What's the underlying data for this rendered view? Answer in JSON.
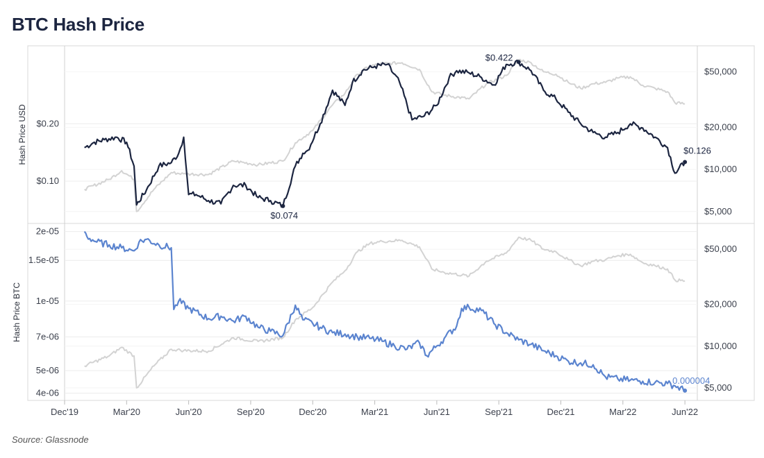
{
  "title": "BTC Hash Price",
  "source": "Source: Glassnode",
  "colors": {
    "usd_line": "#1c2540",
    "btc_line": "#5b84cf",
    "btc_price": "#d3d3d3",
    "grid": "#ececec",
    "frame": "#cfcfcf"
  },
  "chart_data": [
    {
      "type": "line",
      "title": "Hash Price USD",
      "ylabel": "Hash Price USD",
      "y_scale": "log",
      "ylim": [
        0.062,
        0.48
      ],
      "y_ticks": [
        {
          "value": 0.2,
          "label": "$0.20"
        },
        {
          "value": 0.1,
          "label": "$0.10"
        }
      ],
      "y2_scale": "log",
      "y2lim": [
        4300,
        70000
      ],
      "y2_ticks": [
        {
          "value": 50000,
          "label": "$50,000"
        },
        {
          "value": 20000,
          "label": "$20,000"
        },
        {
          "value": 10000,
          "label": "$10,000"
        },
        {
          "value": 5000,
          "label": "$5,000"
        }
      ],
      "series": [
        {
          "name": "Hash Price USD",
          "axis": "left",
          "x": [
            2020.0,
            2020.04,
            2020.08,
            2020.13,
            2020.17,
            2020.2,
            2020.21,
            2020.25,
            2020.3,
            2020.35,
            2020.38,
            2020.4,
            2020.42,
            2020.45,
            2020.5,
            2020.55,
            2020.6,
            2020.65,
            2020.7,
            2020.75,
            2020.8,
            2020.85,
            2020.88,
            2020.9,
            2020.95,
            2021.0,
            2021.05,
            2021.08,
            2021.12,
            2021.17,
            2021.22,
            2021.27,
            2021.32,
            2021.37,
            2021.42,
            2021.47,
            2021.5,
            2021.55,
            2021.6,
            2021.65,
            2021.7,
            2021.75,
            2021.8,
            2021.85,
            2021.9,
            2021.95,
            2022.0,
            2022.05,
            2022.1,
            2022.15,
            2022.2,
            2022.25,
            2022.3,
            2022.35,
            2022.38,
            2022.42
          ],
          "values": [
            0.15,
            0.16,
            0.165,
            0.17,
            0.16,
            0.12,
            0.075,
            0.09,
            0.12,
            0.125,
            0.14,
            0.17,
            0.085,
            0.085,
            0.079,
            0.076,
            0.095,
            0.095,
            0.082,
            0.079,
            0.074,
            0.12,
            0.14,
            0.145,
            0.2,
            0.3,
            0.25,
            0.33,
            0.38,
            0.4,
            0.41,
            0.33,
            0.21,
            0.22,
            0.25,
            0.35,
            0.38,
            0.37,
            0.35,
            0.32,
            0.41,
            0.422,
            0.38,
            0.3,
            0.27,
            0.23,
            0.2,
            0.18,
            0.17,
            0.18,
            0.2,
            0.19,
            0.17,
            0.15,
            0.11,
            0.126
          ]
        },
        {
          "name": "BTC Price",
          "axis": "right",
          "x": [
            2020.0,
            2020.1,
            2020.15,
            2020.2,
            2020.21,
            2020.28,
            2020.35,
            2020.4,
            2020.5,
            2020.6,
            2020.7,
            2020.8,
            2020.85,
            2020.92,
            2021.0,
            2021.05,
            2021.1,
            2021.15,
            2021.2,
            2021.28,
            2021.35,
            2021.4,
            2021.45,
            2021.55,
            2021.62,
            2021.7,
            2021.75,
            2021.8,
            2021.85,
            2021.9,
            2021.95,
            2022.0,
            2022.05,
            2022.1,
            2022.15,
            2022.2,
            2022.25,
            2022.3,
            2022.35,
            2022.38,
            2022.42
          ],
          "values": [
            7200,
            8500,
            9800,
            8500,
            5000,
            7200,
            9500,
            9300,
            9200,
            11500,
            10800,
            11500,
            15500,
            19000,
            29000,
            35000,
            48000,
            55000,
            57000,
            58000,
            52000,
            36000,
            34000,
            32000,
            41000,
            47000,
            61000,
            58000,
            50000,
            48000,
            42000,
            38000,
            41000,
            42000,
            45000,
            46000,
            40000,
            38000,
            36000,
            30000,
            29500
          ]
        }
      ],
      "annotations": [
        {
          "label": "$0.422"
        },
        {
          "label": "$0.074"
        },
        {
          "label": "$0.126"
        }
      ]
    },
    {
      "type": "line",
      "title": "Hash Price BTC",
      "ylabel": "Hash Price BTC",
      "y_scale": "log",
      "ylim": [
        3.85e-06,
        2.05e-05
      ],
      "y_ticks": [
        {
          "value": 2e-05,
          "label": "2e-05"
        },
        {
          "value": 1.5e-05,
          "label": "1.5e-05"
        },
        {
          "value": 1e-05,
          "label": "1e-05"
        },
        {
          "value": 7e-06,
          "label": "7e-06"
        },
        {
          "value": 5e-06,
          "label": "5e-06"
        },
        {
          "value": 4e-06,
          "label": "4e-06"
        }
      ],
      "y2_scale": "log",
      "y2lim": [
        4300,
        70000
      ],
      "y2_ticks": [
        {
          "value": 50000,
          "label": "$50,000"
        },
        {
          "value": 20000,
          "label": "$20,000"
        },
        {
          "value": 10000,
          "label": "$10,000"
        },
        {
          "value": 5000,
          "label": "$5,000"
        }
      ],
      "series": [
        {
          "name": "Hash Price BTC",
          "axis": "left",
          "x": [
            2020.0,
            2020.01,
            2020.05,
            2020.1,
            2020.15,
            2020.2,
            2020.22,
            2020.25,
            2020.3,
            2020.35,
            2020.36,
            2020.38,
            2020.42,
            2020.5,
            2020.55,
            2020.6,
            2020.65,
            2020.7,
            2020.75,
            2020.8,
            2020.85,
            2020.88,
            2020.92,
            2020.95,
            2021.0,
            2021.05,
            2021.1,
            2021.15,
            2021.2,
            2021.25,
            2021.3,
            2021.35,
            2021.38,
            2021.42,
            2021.45,
            2021.5,
            2021.52,
            2021.55,
            2021.6,
            2021.65,
            2021.7,
            2021.75,
            2021.8,
            2021.85,
            2021.9,
            2021.95,
            2022.0,
            2022.05,
            2022.1,
            2022.15,
            2022.2,
            2022.25,
            2022.3,
            2022.35,
            2022.38,
            2022.42
          ],
          "values": [
            2e-05,
            1.9e-05,
            1.8e-05,
            1.75e-05,
            1.7e-05,
            1.65e-05,
            1.8e-05,
            1.85e-05,
            1.75e-05,
            1.7e-05,
            9.2e-06,
            1e-05,
            9.3e-06,
            8.4e-06,
            8.6e-06,
            8.2e-06,
            8.6e-06,
            7.7e-06,
            7.4e-06,
            7.1e-06,
            9.6e-06,
            8.3e-06,
            8e-06,
            7.7e-06,
            7.3e-06,
            7.2e-06,
            7e-06,
            6.9e-06,
            6.7e-06,
            6.4e-06,
            6.2e-06,
            6.6e-06,
            5.8e-06,
            6.4e-06,
            6.9e-06,
            7.8e-06,
            9.3e-06,
            9.4e-06,
            9.1e-06,
            8e-06,
            7.3e-06,
            6.8e-06,
            6.5e-06,
            6.1e-06,
            5.8e-06,
            5.5e-06,
            5.4e-06,
            5.3e-06,
            4.7e-06,
            4.6e-06,
            4.55e-06,
            4.5e-06,
            4.45e-06,
            4.4e-06,
            4.3e-06,
            4.1e-06
          ]
        },
        {
          "name": "BTC Price",
          "axis": "right",
          "x": [
            2020.0,
            2020.1,
            2020.15,
            2020.2,
            2020.21,
            2020.28,
            2020.35,
            2020.4,
            2020.5,
            2020.6,
            2020.7,
            2020.8,
            2020.85,
            2020.92,
            2021.0,
            2021.05,
            2021.1,
            2021.15,
            2021.2,
            2021.28,
            2021.35,
            2021.4,
            2021.45,
            2021.55,
            2021.62,
            2021.7,
            2021.75,
            2021.8,
            2021.85,
            2021.9,
            2021.95,
            2022.0,
            2022.05,
            2022.1,
            2022.15,
            2022.2,
            2022.25,
            2022.3,
            2022.35,
            2022.38,
            2022.42
          ],
          "values": [
            7200,
            8500,
            9800,
            8500,
            5000,
            7200,
            9500,
            9300,
            9200,
            11500,
            10800,
            11500,
            15500,
            19000,
            29000,
            35000,
            48000,
            55000,
            57000,
            58000,
            52000,
            36000,
            34000,
            32000,
            41000,
            47000,
            61000,
            58000,
            50000,
            48000,
            42000,
            38000,
            41000,
            42000,
            45000,
            46000,
            40000,
            38000,
            36000,
            30000,
            29500
          ]
        }
      ],
      "annotations": [
        {
          "label": "0.000004"
        }
      ]
    }
  ],
  "x_axis": {
    "range": [
      2019.92,
      2022.47
    ],
    "ticks": [
      {
        "value": 2019.92,
        "label": "Dec'19"
      },
      {
        "value": 2020.17,
        "label": "Mar'20"
      },
      {
        "value": 2020.42,
        "label": "Jun'20"
      },
      {
        "value": 2020.67,
        "label": "Sep'20"
      },
      {
        "value": 2020.92,
        "label": "Dec'20"
      },
      {
        "value": 2021.17,
        "label": "Mar'21"
      },
      {
        "value": 2021.42,
        "label": "Jun'21"
      },
      {
        "value": 2021.67,
        "label": "Sep'21"
      },
      {
        "value": 2021.92,
        "label": "Dec'21"
      },
      {
        "value": 2022.17,
        "label": "Mar'22"
      },
      {
        "value": 2022.42,
        "label": "Jun'22"
      }
    ]
  }
}
